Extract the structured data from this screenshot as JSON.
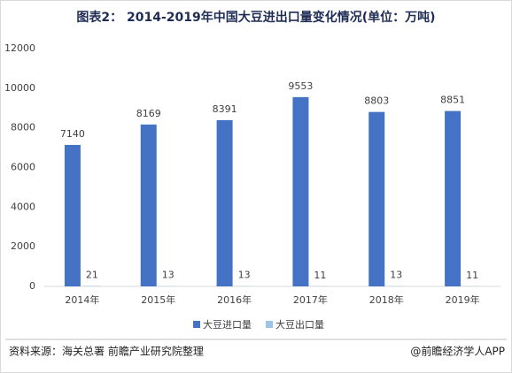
{
  "chart_data": {
    "type": "bar",
    "title": "图表2： 2014-2019年中国大豆进出口量变化情况(单位：万吨)",
    "categories": [
      "2014年",
      "2015年",
      "2016年",
      "2017年",
      "2018年",
      "2019年"
    ],
    "series": [
      {
        "name": "大豆进口量",
        "color": "#4472c4",
        "values": [
          7140,
          8169,
          8391,
          9553,
          8803,
          8851
        ]
      },
      {
        "name": "大豆出口量",
        "color": "#9dc3e6",
        "values": [
          21,
          13,
          13,
          11,
          13,
          11
        ]
      }
    ],
    "ylim": [
      0,
      12000
    ],
    "yticks": [
      0,
      2000,
      4000,
      6000,
      8000,
      10000,
      12000
    ],
    "source": "资料来源：海关总署  前瞻产业研究院整理",
    "credit": "@前瞻经济学人APP"
  }
}
